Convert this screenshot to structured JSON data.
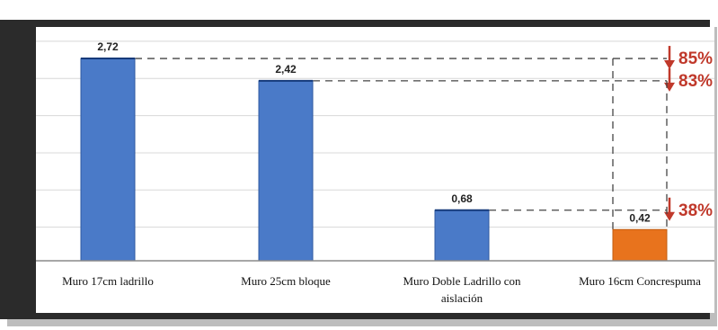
{
  "chart_data": {
    "type": "bar",
    "categories": [
      [
        "Muro 17cm ladrillo"
      ],
      [
        "Muro 25cm bloque"
      ],
      [
        "Muro Doble Ladrillo con",
        "aislación"
      ],
      [
        "Muro 16cm Concrespuma"
      ]
    ],
    "values": [
      2.72,
      2.42,
      0.68,
      0.42
    ],
    "value_labels": [
      "2,72",
      "2,42",
      "0,68",
      "0,42"
    ],
    "bar_colors": [
      "#4a7ac8",
      "#4a7ac8",
      "#4a7ac8",
      "#e8731d"
    ],
    "ylim": [
      0,
      3.0
    ],
    "grid": true,
    "annotations": [
      {
        "text": "85%",
        "from_value": 2.72
      },
      {
        "text": "83%",
        "from_value": 2.42
      },
      {
        "text": "38%",
        "from_value": 0.68
      }
    ],
    "colors": {
      "annotation": "#c0392b",
      "grid": "#d8d8d8",
      "frame": "#555555"
    },
    "title": "",
    "xlabel": "",
    "ylabel": ""
  }
}
